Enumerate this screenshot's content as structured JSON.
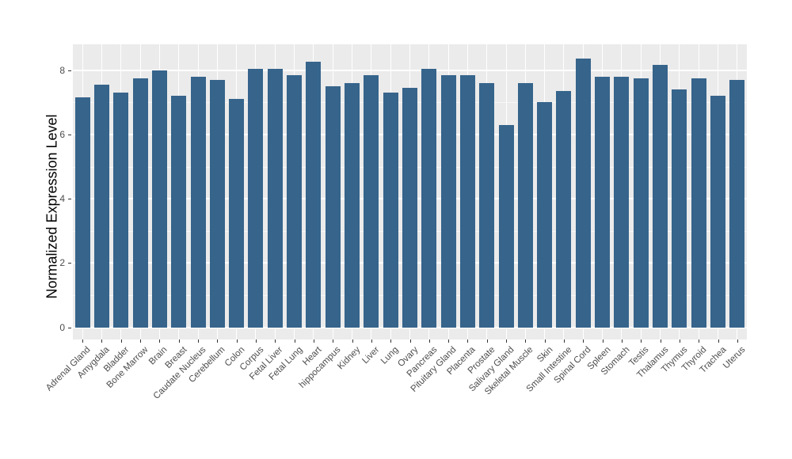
{
  "chart_data": {
    "type": "bar",
    "title": "",
    "xlabel": "",
    "ylabel": "Normalized Expression Level",
    "legend": "none",
    "grid": "on",
    "yticks": [
      0,
      2,
      4,
      6,
      8
    ],
    "ylim": [
      0,
      8.8
    ],
    "categories": [
      "Adrenal Gland",
      "Amygdala",
      "Bladder",
      "Bone Marrow",
      "Brain",
      "Breast",
      "Caudate Nucleus",
      "Cerebellum",
      "Colon",
      "Corpus",
      "Fetal Liver",
      "Fetal Lung",
      "Heart",
      "hippocampus",
      "Kidney",
      "Liver",
      "Lung",
      "Ovary",
      "Pancreas",
      "Pituitary Gland",
      "Placenta",
      "Prostate",
      "Salivary Gland",
      "Skeletal Muscle",
      "Skin",
      "Small Intestine",
      "Spinal Cord",
      "Spleen",
      "Stomach",
      "Testis",
      "Thalamus",
      "Thymus",
      "Thyroid",
      "Trachea",
      "Uterus"
    ],
    "values": [
      7.15,
      7.55,
      7.3,
      7.75,
      8.0,
      7.2,
      7.8,
      7.7,
      7.1,
      8.05,
      8.05,
      7.85,
      8.25,
      7.5,
      7.6,
      7.85,
      7.3,
      7.45,
      8.05,
      7.85,
      7.85,
      7.6,
      6.3,
      7.6,
      7.0,
      7.35,
      8.35,
      7.8,
      7.8,
      7.75,
      8.15,
      7.4,
      7.75,
      7.2,
      7.7
    ],
    "colors": {
      "bar": "#36648B",
      "panel_background": "#EBEBEB",
      "gridline": "#FFFFFF",
      "tick_label": "#4D4D4D",
      "axis_title": "#000000",
      "figure_background": "#FFFFFF"
    }
  }
}
